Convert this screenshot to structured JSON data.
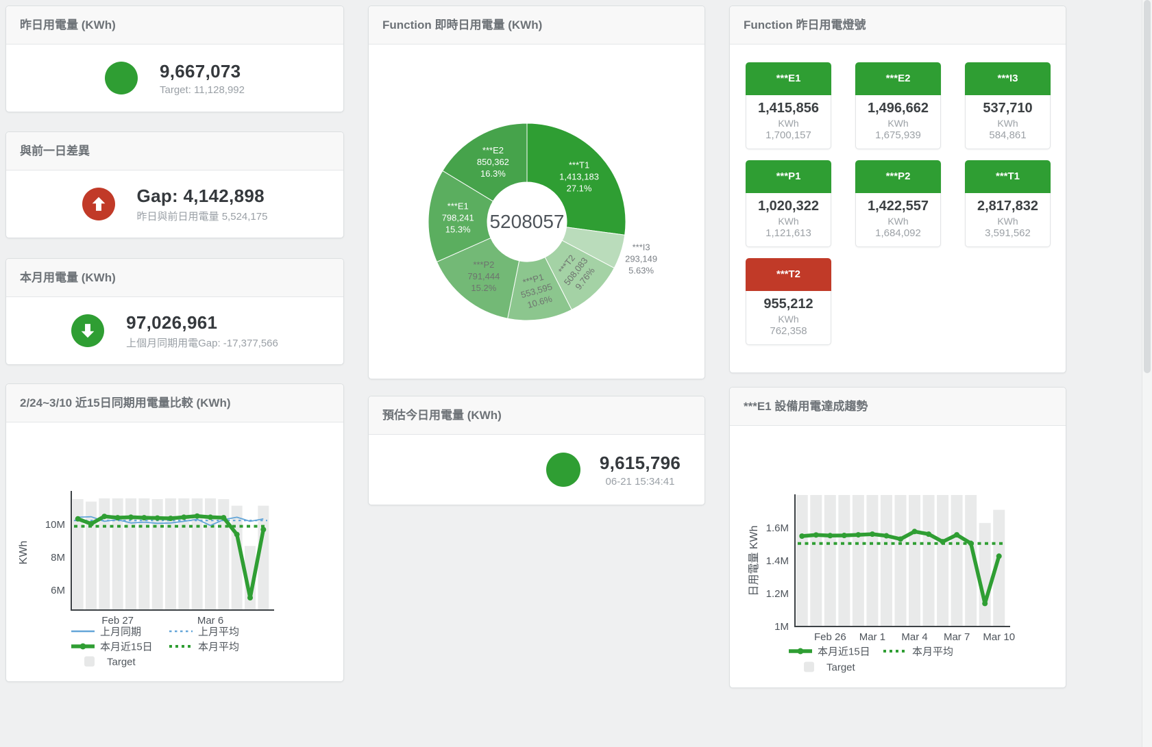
{
  "colors": {
    "green": "#2f9e33",
    "red": "#c13a28",
    "blue": "#63a5d8",
    "bar_gray": "#e9eaea",
    "axis": "#3c4145",
    "tick_text": "#4d535a",
    "legend_text": "#50565c",
    "header_text": "#6d7277",
    "value_text": "#35393d",
    "sub_text": "#9aa0a6"
  },
  "cards": {
    "yesterday": {
      "title": "昨日用電量 (KWh)",
      "value": "9,667,073",
      "sub": "Target: 11,128,992"
    },
    "gap": {
      "title": "與前一日差異",
      "value": "Gap: 4,142,898",
      "sub": "昨日與前日用電量 5,524,175"
    },
    "month": {
      "title": "本月用電量 (KWh)",
      "value": "97,026,961",
      "sub": "上個月同期用電Gap: -17,377,566"
    },
    "compare": {
      "title": "2/24~3/10 近15日同期用電量比較 (KWh)"
    },
    "donut": {
      "title": "Function 即時日用電量 (KWh)"
    },
    "forecast": {
      "title": "預估今日用電量 (KWh)",
      "value": "9,615,796",
      "sub": "06-21 15:34:41"
    },
    "lights": {
      "title": "Function 昨日用電燈號",
      "tiles": [
        {
          "label": "***E1",
          "value": "1,415,856",
          "unit": "KWh",
          "target": "1,700,157",
          "status": "green"
        },
        {
          "label": "***E2",
          "value": "1,496,662",
          "unit": "KWh",
          "target": "1,675,939",
          "status": "green"
        },
        {
          "label": "***I3",
          "value": "537,710",
          "unit": "KWh",
          "target": "584,861",
          "status": "green"
        },
        {
          "label": "***P1",
          "value": "1,020,322",
          "unit": "KWh",
          "target": "1,121,613",
          "status": "green"
        },
        {
          "label": "***P2",
          "value": "1,422,557",
          "unit": "KWh",
          "target": "1,684,092",
          "status": "green"
        },
        {
          "label": "***T1",
          "value": "2,817,832",
          "unit": "KWh",
          "target": "3,591,562",
          "status": "green"
        },
        {
          "label": "***T2",
          "value": "955,212",
          "unit": "KWh",
          "target": "762,358",
          "status": "red"
        }
      ]
    },
    "trend": {
      "title": "***E1 設備用電達成趨勢"
    }
  },
  "chart_data": [
    {
      "type": "pie",
      "title": "Function 即時日用電量 (KWh)",
      "center_total": "5208057",
      "unit": "KWh",
      "slices": [
        {
          "name": "***T1",
          "value": 1413183,
          "display": "1,413,183",
          "pct": "27.1%",
          "color": "#2f9e33",
          "label_color": "#ffffff",
          "outside": false,
          "rotate": 0
        },
        {
          "name": "***I3",
          "value": 293149,
          "display": "293,149",
          "pct": "5.63%",
          "color": "#badcbb",
          "label_color": "#7c8187",
          "outside": true,
          "rotate": 0
        },
        {
          "name": "***T2",
          "value": 508083,
          "display": "508,083",
          "pct": "9.76%",
          "color": "#a4d2a5",
          "label_color": "#6d736e",
          "outside": false,
          "rotate": -52
        },
        {
          "name": "***P1",
          "value": 553595,
          "display": "553,595",
          "pct": "10.6%",
          "color": "#8cc68e",
          "label_color": "#6d736e",
          "outside": false,
          "rotate": -16
        },
        {
          "name": "***P2",
          "value": 791444,
          "display": "791,444",
          "pct": "15.2%",
          "color": "#73b976",
          "label_color": "#6d736e",
          "outside": false,
          "rotate": 0
        },
        {
          "name": "***E1",
          "value": 798241,
          "display": "798,241",
          "pct": "15.3%",
          "color": "#5bae5f",
          "label_color": "#ffffff",
          "outside": false,
          "rotate": 0
        },
        {
          "name": "***E2",
          "value": 850362,
          "display": "850,362",
          "pct": "16.3%",
          "color": "#46a34b",
          "label_color": "#ffffff",
          "outside": false,
          "rotate": 0
        }
      ]
    },
    {
      "type": "line+bar",
      "title": "2/24~3/10 近15日同期用電量比較 (KWh)",
      "unit": "M KWh",
      "ylabel": "KWh",
      "categories": [
        "2/24",
        "2/25",
        "2/26",
        "2/27",
        "2/28",
        "3/1",
        "3/2",
        "3/3",
        "3/4",
        "3/5",
        "3/6",
        "3/7",
        "3/8",
        "3/9",
        "3/10"
      ],
      "target_bars_M": [
        11.55,
        11.4,
        11.6,
        11.6,
        11.6,
        11.6,
        11.55,
        11.6,
        11.6,
        11.6,
        11.6,
        11.55,
        11.15,
        8.7,
        11.15
      ],
      "last_month_M": [
        10.45,
        10.48,
        10.2,
        10.3,
        10.1,
        10.15,
        10.08,
        10.1,
        10.2,
        10.32,
        9.95,
        10.3,
        10.45,
        10.2,
        10.35
      ],
      "this_month_M": [
        10.35,
        10.05,
        10.5,
        10.42,
        10.45,
        10.42,
        10.4,
        10.38,
        10.45,
        10.52,
        10.45,
        10.42,
        9.4,
        5.55,
        9.7
      ],
      "last_month_avg_M": 10.25,
      "this_month_avg_M": 9.9,
      "yticks": [
        {
          "v": 10,
          "label": "10M"
        },
        {
          "v": 8,
          "label": "8M"
        },
        {
          "v": 6,
          "label": "6M"
        }
      ],
      "x_ticks": [
        {
          "index": 3,
          "label": "Feb 27"
        },
        {
          "index": 10,
          "label": "Mar 6"
        }
      ],
      "legend": [
        {
          "label": "上月同期",
          "swatch": "line",
          "color": "#63a5d8"
        },
        {
          "label": "上月平均",
          "swatch": "dashed",
          "color": "#63a5d8"
        },
        {
          "label": "本月近15日",
          "swatch": "thickline",
          "color": "#2f9e33"
        },
        {
          "label": "本月平均",
          "swatch": "dotted",
          "color": "#2f9e33"
        },
        {
          "label": "Target",
          "swatch": "square",
          "color": "#e7e8e8"
        }
      ]
    },
    {
      "type": "line+bar",
      "title": "***E1 設備用電達成趨勢",
      "unit": "M KWh",
      "ylabel": "日用電量 KWh",
      "categories": [
        "2/24",
        "2/25",
        "2/26",
        "2/27",
        "2/28",
        "3/1",
        "3/2",
        "3/3",
        "3/4",
        "3/5",
        "3/6",
        "3/7",
        "3/8",
        "3/9",
        "3/10"
      ],
      "target_bars_M": [
        1.8,
        1.8,
        1.8,
        1.8,
        1.8,
        1.8,
        1.8,
        1.8,
        1.8,
        1.8,
        1.8,
        1.8,
        1.8,
        1.63,
        1.71
      ],
      "this_month_M": [
        1.55,
        1.557,
        1.553,
        1.554,
        1.558,
        1.562,
        1.552,
        1.532,
        1.578,
        1.562,
        1.516,
        1.558,
        1.506,
        1.14,
        1.428
      ],
      "this_month_avg_M": 1.505,
      "yticks": [
        {
          "v": 1.6,
          "label": "1.6M"
        },
        {
          "v": 1.4,
          "label": "1.4M"
        },
        {
          "v": 1.2,
          "label": "1.2M"
        },
        {
          "v": 1.0,
          "label": "1M"
        }
      ],
      "x_ticks": [
        {
          "index": 2,
          "label": "Feb 26"
        },
        {
          "index": 5,
          "label": "Mar 1"
        },
        {
          "index": 8,
          "label": "Mar 4"
        },
        {
          "index": 11,
          "label": "Mar 7"
        },
        {
          "index": 14,
          "label": "Mar 10"
        }
      ],
      "legend": [
        {
          "label": "本月近15日",
          "swatch": "thickline",
          "color": "#2f9e33"
        },
        {
          "label": "本月平均",
          "swatch": "dotted",
          "color": "#2f9e33"
        },
        {
          "label": "Target",
          "swatch": "square",
          "color": "#e7e8e8"
        }
      ]
    }
  ]
}
